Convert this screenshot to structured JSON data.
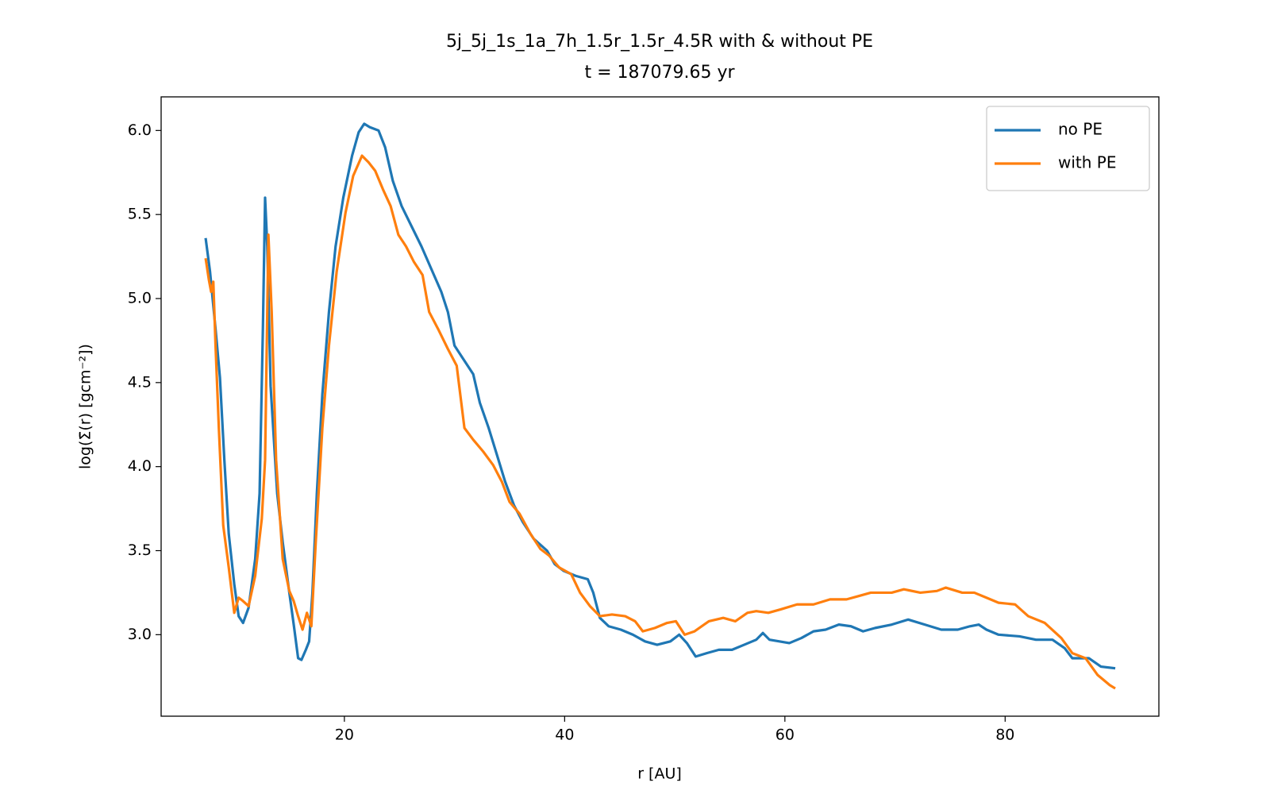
{
  "chart_data": {
    "type": "line",
    "title": "5j_5j_1s_1a_7h_1.5r_1.5r_4.5R with & without PE",
    "subtitle": "t = 187079.65 yr",
    "x_label": "r [AU]",
    "y_label": "log(Σ̄(r) [gcm⁻²])",
    "xlim": [
      3.36,
      93.96
    ],
    "ylim": [
      2.515,
      6.2
    ],
    "xticks": [
      20,
      40,
      60,
      80
    ],
    "yticks": [
      {
        "value": 3,
        "label": "3.0"
      },
      3.5,
      {
        "value": 4,
        "label": "4.0"
      },
      4.5,
      {
        "value": 5,
        "label": "5.0"
      },
      5.5,
      {
        "value": 6,
        "label": "6.0"
      }
    ],
    "grid": false,
    "legend": "upper right",
    "series": [
      {
        "name": "no PE",
        "color": "#1f77b4",
        "x": [
          7.4,
          7.8,
          8.3,
          8.7,
          9.1,
          9.5,
          10.0,
          10.4,
          10.8,
          11.3,
          11.9,
          12.3,
          12.6,
          12.8,
          13.0,
          13.3,
          13.9,
          14.4,
          15.0,
          15.4,
          15.8,
          16.1,
          16.5,
          16.8,
          17.1,
          17.5,
          18.0,
          18.6,
          19.2,
          19.9,
          20.7,
          21.3,
          21.8,
          22.3,
          23.1,
          23.7,
          24.4,
          25.2,
          26.1,
          27.0,
          28.0,
          28.8,
          29.4,
          30.0,
          30.7,
          31.7,
          32.3,
          33.1,
          33.9,
          34.6,
          35.4,
          36.2,
          37.2,
          38.4,
          39.1,
          39.9,
          41.0,
          42.1,
          42.6,
          43.2,
          44.0,
          45.1,
          46.2,
          47.3,
          48.4,
          49.6,
          50.4,
          51.1,
          51.9,
          52.9,
          54.0,
          55.2,
          56.3,
          57.4,
          58.0,
          58.6,
          59.5,
          60.4,
          61.5,
          62.6,
          63.7,
          64.9,
          66.0,
          67.1,
          68.2,
          69.7,
          71.2,
          72.7,
          74.2,
          75.7,
          76.8,
          77.6,
          78.3,
          79.4,
          81.3,
          82.8,
          84.3,
          85.4,
          86.1,
          87.6,
          88.7,
          90.0
        ],
        "values": [
          5.36,
          5.16,
          4.82,
          4.53,
          4.04,
          3.6,
          3.3,
          3.11,
          3.07,
          3.16,
          3.45,
          3.84,
          4.82,
          5.6,
          5.31,
          4.48,
          3.84,
          3.55,
          3.25,
          3.06,
          2.86,
          2.85,
          2.91,
          2.96,
          3.25,
          3.84,
          4.43,
          4.92,
          5.31,
          5.6,
          5.85,
          5.99,
          6.04,
          6.02,
          6.0,
          5.9,
          5.7,
          5.55,
          5.43,
          5.31,
          5.16,
          5.04,
          4.92,
          4.72,
          4.65,
          4.55,
          4.38,
          4.23,
          4.06,
          3.91,
          3.77,
          3.67,
          3.57,
          3.5,
          3.42,
          3.38,
          3.35,
          3.33,
          3.25,
          3.1,
          3.05,
          3.03,
          3.0,
          2.96,
          2.94,
          2.96,
          3.0,
          2.95,
          2.87,
          2.89,
          2.91,
          2.91,
          2.94,
          2.97,
          3.01,
          2.97,
          2.96,
          2.95,
          2.98,
          3.02,
          3.03,
          3.06,
          3.05,
          3.02,
          3.04,
          3.06,
          3.09,
          3.06,
          3.03,
          3.03,
          3.05,
          3.06,
          3.03,
          3.0,
          2.99,
          2.97,
          2.97,
          2.92,
          2.86,
          2.86,
          2.81,
          2.8
        ]
      },
      {
        "name": "with PE",
        "color": "#ff7f0e",
        "x": [
          7.4,
          7.7,
          7.9,
          8.1,
          8.3,
          8.6,
          9.0,
          9.5,
          10.0,
          10.4,
          10.8,
          11.3,
          11.9,
          12.5,
          12.8,
          13.1,
          13.4,
          13.8,
          14.4,
          15.0,
          15.4,
          15.8,
          16.2,
          16.6,
          17.0,
          17.4,
          18.0,
          18.6,
          19.3,
          20.1,
          20.8,
          21.6,
          22.2,
          22.8,
          23.5,
          24.2,
          24.9,
          25.6,
          26.3,
          27.1,
          27.7,
          28.5,
          29.4,
          30.2,
          30.9,
          31.7,
          32.6,
          33.5,
          34.3,
          35.0,
          35.9,
          36.9,
          37.8,
          38.6,
          39.5,
          40.6,
          41.4,
          42.3,
          43.2,
          44.3,
          45.5,
          46.4,
          47.1,
          48.2,
          49.3,
          50.1,
          50.9,
          51.8,
          53.1,
          54.4,
          55.5,
          56.6,
          57.4,
          58.5,
          59.6,
          61.1,
          62.6,
          64.1,
          65.6,
          66.7,
          67.8,
          69.7,
          70.8,
          72.3,
          73.8,
          74.6,
          76.1,
          77.2,
          78.3,
          79.4,
          80.9,
          82.1,
          83.6,
          85.1,
          86.1,
          87.3,
          88.4,
          89.5,
          90.0
        ],
        "values": [
          5.24,
          5.11,
          5.04,
          5.1,
          4.72,
          4.23,
          3.65,
          3.4,
          3.13,
          3.22,
          3.2,
          3.17,
          3.35,
          3.69,
          4.04,
          5.38,
          4.92,
          4.04,
          3.45,
          3.26,
          3.2,
          3.11,
          3.03,
          3.13,
          3.05,
          3.55,
          4.23,
          4.72,
          5.16,
          5.51,
          5.73,
          5.85,
          5.81,
          5.76,
          5.65,
          5.55,
          5.38,
          5.31,
          5.22,
          5.14,
          4.92,
          4.82,
          4.7,
          4.6,
          4.23,
          4.16,
          4.09,
          4.01,
          3.91,
          3.79,
          3.72,
          3.6,
          3.51,
          3.47,
          3.4,
          3.36,
          3.25,
          3.17,
          3.11,
          3.12,
          3.11,
          3.08,
          3.02,
          3.04,
          3.07,
          3.08,
          3.0,
          3.02,
          3.08,
          3.1,
          3.08,
          3.13,
          3.14,
          3.13,
          3.15,
          3.18,
          3.18,
          3.21,
          3.21,
          3.23,
          3.25,
          3.25,
          3.27,
          3.25,
          3.26,
          3.28,
          3.25,
          3.25,
          3.22,
          3.19,
          3.18,
          3.11,
          3.07,
          2.98,
          2.89,
          2.86,
          2.76,
          2.7,
          2.68
        ]
      }
    ]
  }
}
